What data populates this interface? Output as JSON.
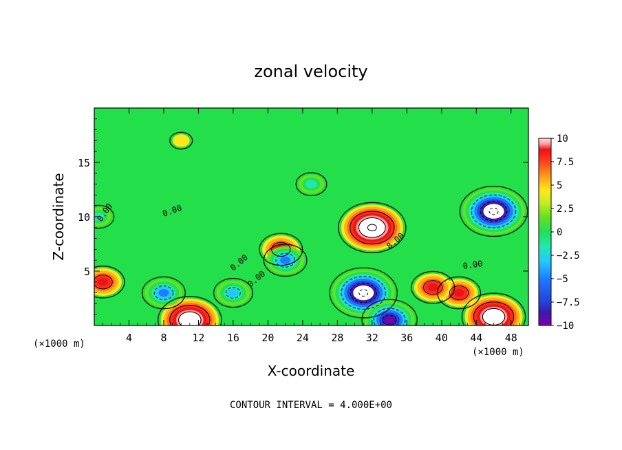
{
  "chart_data": {
    "type": "heatmap",
    "title": "zonal velocity",
    "xlabel": "X-coordinate",
    "ylabel": "Z-coordinate",
    "x_unit_label": "(×1000 m)",
    "x_unit_label_right": "(×1000 m)",
    "x_ticks": [
      "4",
      "8",
      "12",
      "16",
      "20",
      "24",
      "28",
      "32",
      "36",
      "40",
      "44",
      "48"
    ],
    "x_tick_values": [
      4,
      8,
      12,
      16,
      20,
      24,
      28,
      32,
      36,
      40,
      44,
      48
    ],
    "y_ticks": [
      "5",
      "10",
      "15"
    ],
    "y_tick_values": [
      5,
      10,
      15
    ],
    "xlim": [
      0,
      50
    ],
    "ylim": [
      0,
      20
    ],
    "colorbar": {
      "ticks": [
        "10",
        "7.5",
        "5",
        "2.5",
        "0",
        "−2.5",
        "−5",
        "−7.5",
        "−10"
      ],
      "tick_values": [
        10,
        7.5,
        5,
        2.5,
        0,
        -2.5,
        -5,
        -7.5,
        -10
      ],
      "range": [
        -10,
        10
      ],
      "colors": [
        "#7a00b0",
        "#3c1aa8",
        "#2244dd",
        "#1e7cff",
        "#22c8ff",
        "#22e8b0",
        "#1ee05a",
        "#66e31e",
        "#c8ee22",
        "#ffe81a",
        "#ffb01a",
        "#ff6a1a",
        "#ff2a1a",
        "#e8151a",
        "#ff9a9a",
        "#ffffff"
      ]
    },
    "features": [
      {
        "x": 32,
        "z": 9,
        "value": 12,
        "kind": "max"
      },
      {
        "x": 31,
        "z": 3,
        "value": -12,
        "kind": "min"
      },
      {
        "x": 46,
        "z": 10.5,
        "value": -12,
        "kind": "min"
      },
      {
        "x": 46,
        "z": 0.8,
        "value": 11,
        "kind": "max"
      },
      {
        "x": 11,
        "z": 0.5,
        "value": 11,
        "kind": "max"
      },
      {
        "x": 34,
        "z": 0.5,
        "value": -9,
        "kind": "min"
      },
      {
        "x": 1,
        "z": 4,
        "value": 6,
        "kind": "max"
      },
      {
        "x": 8,
        "z": 3,
        "value": -6,
        "kind": "min"
      },
      {
        "x": 16,
        "z": 3,
        "value": -5,
        "kind": "min"
      },
      {
        "x": 42,
        "z": 3,
        "value": 6,
        "kind": "max"
      },
      {
        "x": 39,
        "z": 3.5,
        "value": 6,
        "kind": "max"
      },
      {
        "x": 21.5,
        "z": 7,
        "value": 6,
        "kind": "max"
      },
      {
        "x": 22,
        "z": 6,
        "value": -6,
        "kind": "min"
      },
      {
        "x": 25,
        "z": 13,
        "value": -3,
        "kind": "min"
      },
      {
        "x": 10,
        "z": 17,
        "value": 1,
        "kind": "max"
      },
      {
        "x": 0.5,
        "z": 10,
        "value": -3,
        "kind": "min"
      }
    ],
    "contour_labels": [
      "0.00",
      "0.00",
      "0.00",
      "0.00",
      "0.00",
      "8.00"
    ],
    "footer": "CONTOUR INTERVAL = 4.000E+00"
  }
}
